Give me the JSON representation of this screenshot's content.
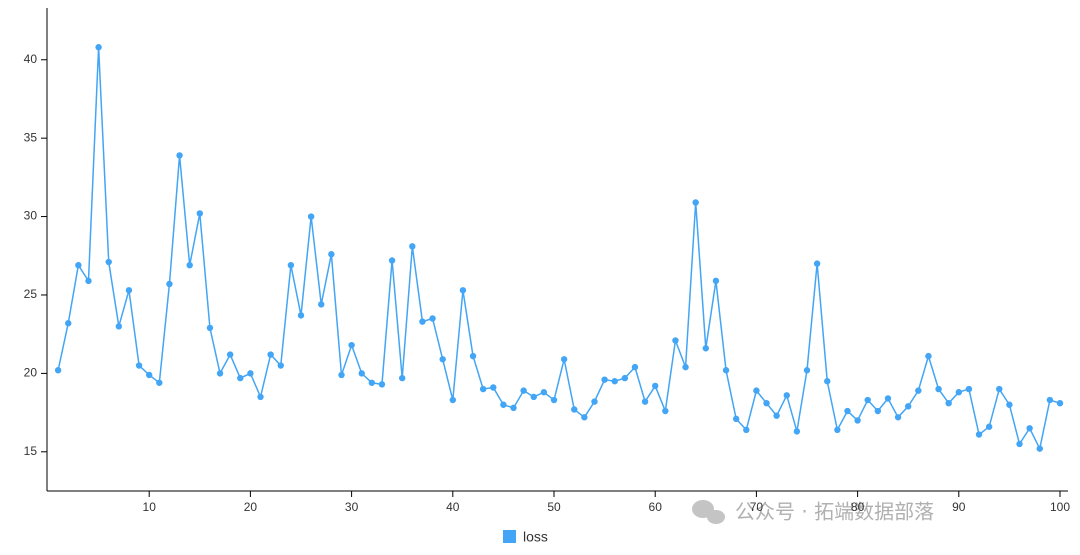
{
  "chart_data": {
    "type": "line",
    "x": [
      1,
      2,
      3,
      4,
      5,
      6,
      7,
      8,
      9,
      10,
      11,
      12,
      13,
      14,
      15,
      16,
      17,
      18,
      19,
      20,
      21,
      22,
      23,
      24,
      25,
      26,
      27,
      28,
      29,
      30,
      31,
      32,
      33,
      34,
      35,
      36,
      37,
      38,
      39,
      40,
      41,
      42,
      43,
      44,
      45,
      46,
      47,
      48,
      49,
      50,
      51,
      52,
      53,
      54,
      55,
      56,
      57,
      58,
      59,
      60,
      61,
      62,
      63,
      64,
      65,
      66,
      67,
      68,
      69,
      70,
      71,
      72,
      73,
      74,
      75,
      76,
      77,
      78,
      79,
      80,
      81,
      82,
      83,
      84,
      85,
      86,
      87,
      88,
      89,
      90,
      91,
      92,
      93,
      94,
      95,
      96,
      97,
      98,
      99,
      100
    ],
    "series": [
      {
        "name": "loss",
        "color": "#42a5f5",
        "values": [
          20.2,
          23.2,
          26.9,
          25.9,
          40.8,
          27.1,
          23.0,
          25.3,
          20.5,
          19.9,
          19.4,
          25.7,
          33.9,
          26.9,
          30.2,
          22.9,
          20.0,
          21.2,
          19.7,
          20.0,
          18.5,
          21.2,
          20.5,
          26.9,
          23.7,
          30.0,
          24.4,
          27.6,
          19.9,
          21.8,
          20.0,
          19.4,
          19.3,
          27.2,
          19.7,
          28.1,
          23.3,
          23.5,
          20.9,
          18.3,
          25.3,
          21.1,
          19.0,
          19.1,
          18.0,
          17.8,
          18.9,
          18.5,
          18.8,
          18.3,
          20.9,
          17.7,
          17.2,
          18.2,
          19.6,
          19.5,
          19.7,
          20.4,
          18.2,
          19.2,
          17.6,
          22.1,
          20.4,
          30.9,
          21.6,
          25.9,
          20.2,
          17.1,
          16.4,
          18.9,
          18.1,
          17.3,
          18.6,
          16.3,
          20.2,
          27.0,
          19.5,
          16.4,
          17.6,
          17.0,
          18.3,
          17.6,
          18.4,
          17.2,
          17.9,
          18.9,
          21.1,
          19.0,
          18.1,
          18.8,
          19.0,
          16.1,
          16.6,
          19.0,
          18.0,
          15.5,
          16.5,
          15.2,
          18.3,
          18.1
        ]
      }
    ],
    "xlim": [
      0,
      100
    ],
    "xticks": [
      10,
      20,
      30,
      40,
      50,
      60,
      70,
      80,
      90,
      100
    ],
    "ylim": [
      12.5,
      43.3
    ],
    "yticks": [
      15,
      20,
      25,
      30,
      35,
      40
    ],
    "legend": "bottom",
    "watermark": "公众号 · 拓端数据部落"
  }
}
